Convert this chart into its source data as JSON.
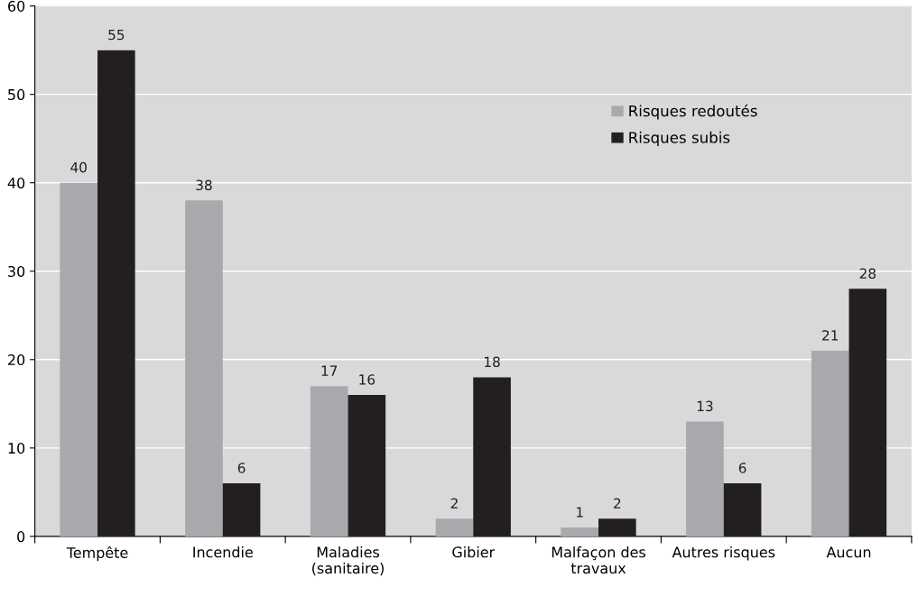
{
  "chart_data": {
    "type": "bar",
    "categories": [
      "Tempête",
      "Incendie",
      "Maladies\n(sanitaire)",
      "Gibier",
      "Malfaçon des\ntravaux",
      "Autres risques",
      "Aucun"
    ],
    "series": [
      {
        "name": "Risques redoutés",
        "color": "#a7a9ac",
        "values": [
          40,
          38,
          17,
          2,
          1,
          13,
          21
        ]
      },
      {
        "name": "Risques subis",
        "color": "#231f20",
        "values": [
          55,
          6,
          16,
          18,
          2,
          6,
          28
        ]
      }
    ],
    "ylim": [
      0,
      60
    ],
    "yticks": [
      0,
      10,
      20,
      30,
      40,
      50,
      60
    ],
    "grid": "y",
    "legend": "top right",
    "data_labels": true
  }
}
